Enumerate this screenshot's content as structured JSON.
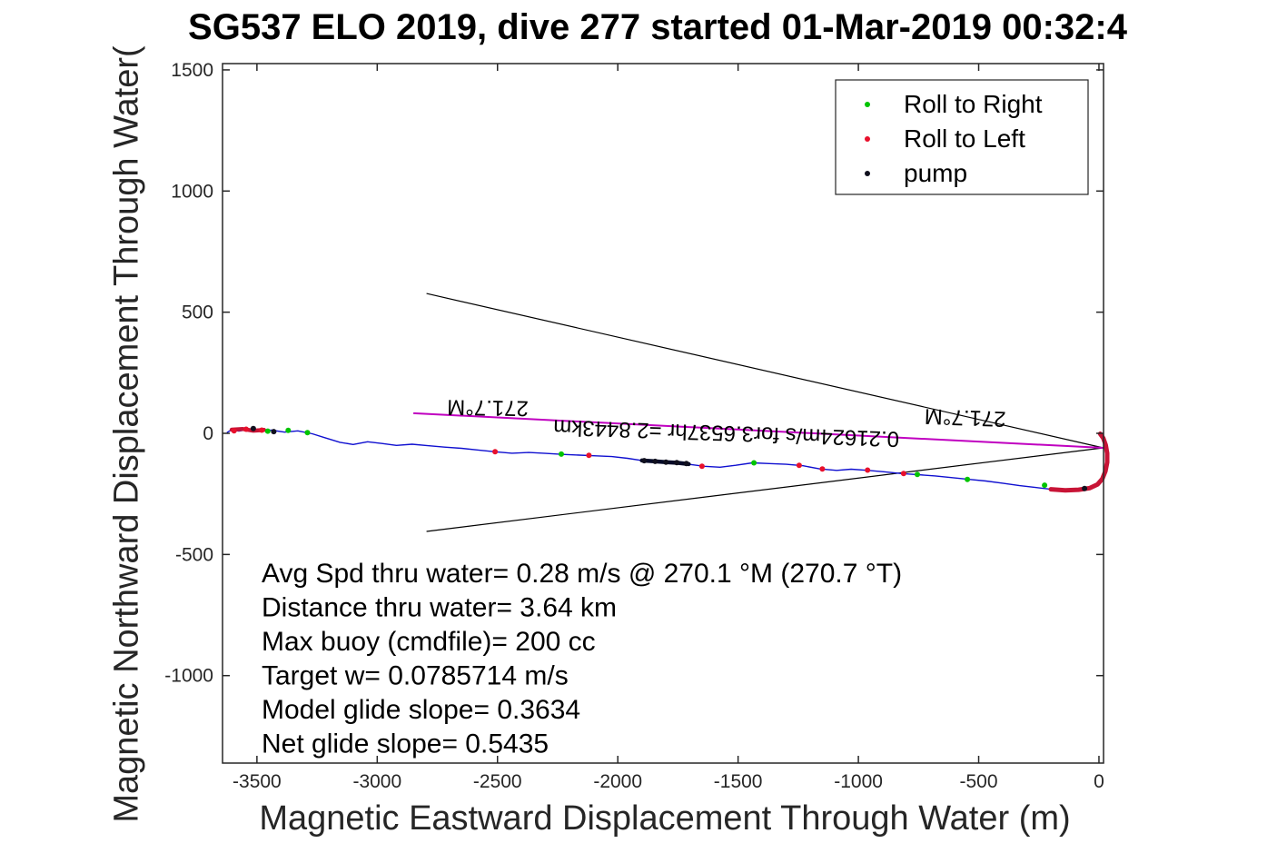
{
  "title": "SG537 ELO 2019, dive 277 started 01-Mar-2019 00:32:4",
  "chart_data": {
    "type": "line",
    "title": "SG537 ELO 2019, dive 277 started 01-Mar-2019 00:32:4",
    "xlabel": "Magnetic Eastward Displacement Through Water (m)",
    "ylabel": "Magnetic Northward Displacement Through Water(",
    "xlim": [
      -3643,
      19
    ],
    "ylim": [
      -1361,
      1526
    ],
    "x_ticks": [
      -3500,
      -3000,
      -2500,
      -2000,
      -1500,
      -1000,
      -500,
      0
    ],
    "y_ticks": [
      -1000,
      -500,
      0,
      500,
      1000,
      1500
    ],
    "grid": false,
    "legend_position": "top-right",
    "legend": [
      {
        "label": "Roll to Right",
        "color": "#00c400",
        "marker": "dot"
      },
      {
        "label": "Roll to Left",
        "color": "#e8102c",
        "marker": "dot"
      },
      {
        "label": "pump",
        "color": "#10101e",
        "marker": "dot"
      }
    ],
    "colors": {
      "track": "#0f0fd0",
      "hook": "#c81436",
      "pump_segment": "#050a28",
      "cone": "#000000",
      "vector": "#c000c0",
      "axis": "#262626",
      "text": "#000000"
    },
    "track": [
      [
        5,
        -2
      ],
      [
        18,
        -20
      ],
      [
        28,
        -48
      ],
      [
        34,
        -82
      ],
      [
        34,
        -120
      ],
      [
        27,
        -156
      ],
      [
        14,
        -188
      ],
      [
        -6,
        -211
      ],
      [
        -38,
        -226
      ],
      [
        -85,
        -233
      ],
      [
        -140,
        -235
      ],
      [
        -200,
        -231
      ],
      [
        -260,
        -224
      ],
      [
        -330,
        -216
      ],
      [
        -400,
        -206
      ],
      [
        -470,
        -197
      ],
      [
        -540,
        -190
      ],
      [
        -610,
        -183
      ],
      [
        -680,
        -176
      ],
      [
        -750,
        -171
      ],
      [
        -820,
        -166
      ],
      [
        -890,
        -159
      ],
      [
        -960,
        -153
      ],
      [
        -1030,
        -148
      ],
      [
        -1090,
        -153
      ],
      [
        -1160,
        -147
      ],
      [
        -1230,
        -134
      ],
      [
        -1300,
        -128
      ],
      [
        -1370,
        -125
      ],
      [
        -1440,
        -122
      ],
      [
        -1510,
        -132
      ],
      [
        -1575,
        -140
      ],
      [
        -1640,
        -136
      ],
      [
        -1710,
        -127
      ],
      [
        -1775,
        -120
      ],
      [
        -1840,
        -116
      ],
      [
        -1900,
        -112
      ],
      [
        -1960,
        -103
      ],
      [
        -2025,
        -96
      ],
      [
        -2090,
        -93
      ],
      [
        -2160,
        -90
      ],
      [
        -2230,
        -87
      ],
      [
        -2300,
        -83
      ],
      [
        -2370,
        -79
      ],
      [
        -2440,
        -82
      ],
      [
        -2510,
        -76
      ],
      [
        -2580,
        -69
      ],
      [
        -2650,
        -62
      ],
      [
        -2720,
        -57
      ],
      [
        -2790,
        -51
      ],
      [
        -2855,
        -45
      ],
      [
        -2920,
        -50
      ],
      [
        -2980,
        -42
      ],
      [
        -3040,
        -35
      ],
      [
        -3100,
        -46
      ],
      [
        -3155,
        -37
      ],
      [
        -3215,
        -19
      ],
      [
        -3270,
        -2
      ],
      [
        -3330,
        10
      ],
      [
        -3385,
        5
      ],
      [
        -3440,
        13
      ],
      [
        -3490,
        8
      ],
      [
        -3535,
        16
      ],
      [
        -3575,
        9
      ],
      [
        -3605,
        15
      ],
      [
        -3625,
        3
      ]
    ],
    "hook": [
      [
        5,
        -2
      ],
      [
        18,
        -20
      ],
      [
        28,
        -48
      ],
      [
        34,
        -82
      ],
      [
        34,
        -120
      ],
      [
        27,
        -156
      ],
      [
        14,
        -188
      ],
      [
        -6,
        -211
      ],
      [
        -38,
        -226
      ],
      [
        -85,
        -233
      ],
      [
        -140,
        -235
      ],
      [
        -200,
        -231
      ]
    ],
    "pump_segment": [
      [
        -1900,
        -112
      ],
      [
        -1850,
        -115
      ],
      [
        -1800,
        -119
      ],
      [
        -1750,
        -122
      ],
      [
        -1705,
        -127
      ]
    ],
    "left_cluster": [
      [
        -3605,
        15
      ],
      [
        -3560,
        18
      ],
      [
        -3515,
        11
      ],
      [
        -3470,
        14
      ]
    ],
    "scatter": {
      "roll_right": [
        [
          -226,
          -214
        ],
        [
          -547,
          -190
        ],
        [
          -755,
          -170
        ],
        [
          -1434,
          -122
        ],
        [
          -2235,
          -86
        ],
        [
          -3290,
          3
        ],
        [
          -3370,
          12
        ],
        [
          -3455,
          9
        ]
      ],
      "roll_left": [
        [
          -812,
          -166
        ],
        [
          -962,
          -152
        ],
        [
          -1150,
          -147
        ],
        [
          -1246,
          -132
        ],
        [
          -1650,
          -136
        ],
        [
          -2120,
          -91
        ],
        [
          -2510,
          -76
        ],
        [
          -3480,
          13
        ],
        [
          -3545,
          17
        ],
        [
          -3595,
          10
        ]
      ],
      "pump": [
        [
          -1890,
          -113
        ],
        [
          -1845,
          -116
        ],
        [
          -1800,
          -119
        ],
        [
          -1755,
          -121
        ],
        [
          -1715,
          -125
        ],
        [
          -3515,
          20
        ],
        [
          -3430,
          7
        ],
        [
          -60,
          -228
        ]
      ]
    },
    "cone": {
      "vertex": [
        18,
        -60
      ],
      "upper_end": [
        -2795,
        577
      ],
      "lower_end": [
        -2795,
        -405
      ]
    },
    "vector": {
      "from": [
        18,
        -60
      ],
      "to": [
        -2850,
        83
      ]
    },
    "annotations": [
      {
        "text": "271.7°M",
        "x": -2540,
        "y": 135,
        "rotation": 181,
        "size": 24
      },
      {
        "text": "0.21624m/s for3.6537hr =2.8443km",
        "x": -1548,
        "y": 30,
        "rotation": 182,
        "size": 24
      },
      {
        "text": "271.7°M",
        "x": -555,
        "y": 94,
        "rotation": 182,
        "size": 24
      }
    ],
    "stats_lines": [
      "Avg Spd thru water=  0.28 m/s @ 270.1 °M (270.7 °T)",
      "Distance thru water=  3.64 km",
      "Max buoy (cmdfile)= 200 cc",
      "Target w= 0.0785714 m/s",
      "Model glide slope= 0.3634",
      "Net glide slope= 0.5435"
    ]
  }
}
